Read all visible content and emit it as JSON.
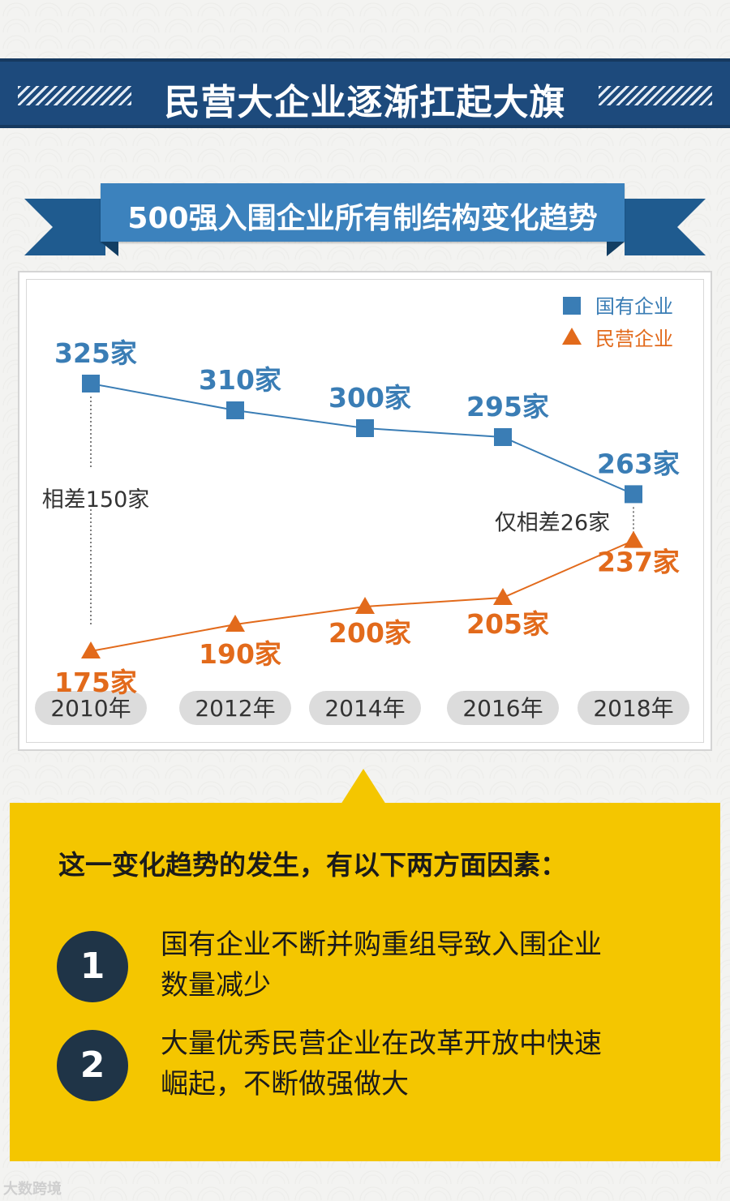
{
  "header": {
    "title": "民营大企业逐渐扛起大旗"
  },
  "ribbon": {
    "title": "500强入围企业所有制结构变化趋势"
  },
  "chart_data": {
    "type": "line",
    "title": "500强入围企业所有制结构变化趋势",
    "categories": [
      "2010年",
      "2012年",
      "2014年",
      "2016年",
      "2018年"
    ],
    "series": [
      {
        "name": "国有企业",
        "values": [
          325,
          310,
          300,
          295,
          263
        ],
        "labels": [
          "325家",
          "310家",
          "300家",
          "295家",
          "263家"
        ],
        "color": "#3a7db5",
        "marker": "square"
      },
      {
        "name": "民营企业",
        "values": [
          175,
          190,
          200,
          205,
          237
        ],
        "labels": [
          "175家",
          "190家",
          "200家",
          "205家",
          "237家"
        ],
        "color": "#e26a1b",
        "marker": "triangle"
      }
    ],
    "annotations": [
      {
        "text": "相差150家",
        "category": "2010年"
      },
      {
        "text": "仅相差26家",
        "category": "2018年"
      }
    ],
    "legend": "top-right"
  },
  "summary": {
    "intro": "这一变化趋势的发生，有以下两方面因素：",
    "factors": [
      {
        "num": "1",
        "line1": "国有企业不断并购重组导致入围企业",
        "line2": "数量减少"
      },
      {
        "num": "2",
        "line1": "大量优秀民营企业在改革开放中快速",
        "line2": "崛起，不断做强做大"
      }
    ]
  },
  "footer": {
    "logo_text": "大数跨境"
  }
}
